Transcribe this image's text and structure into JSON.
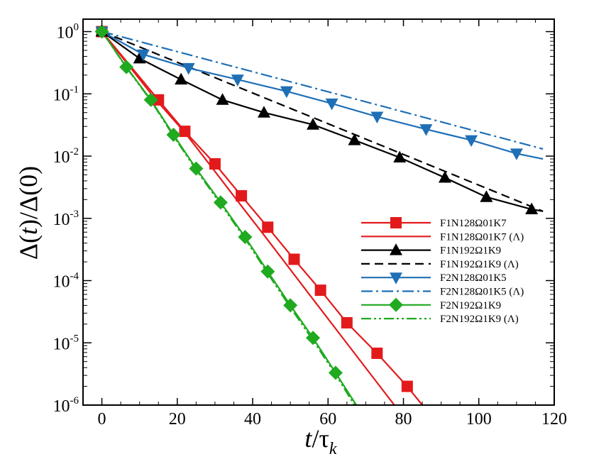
{
  "chart_data": {
    "type": "line",
    "xlabel": "t/τ_k",
    "ylabel": "Δ(t)/Δ(0)",
    "xlim": [
      -5,
      120
    ],
    "ylim_log10": [
      -6,
      0.2
    ],
    "yscale": "log",
    "x_ticks": [
      0,
      20,
      40,
      60,
      80,
      100,
      120
    ],
    "y_ticks": [
      {
        "exp": 0,
        "label": "10",
        "sup": "0"
      },
      {
        "exp": -1,
        "label": "10",
        "sup": "-1"
      },
      {
        "exp": -2,
        "label": "10",
        "sup": "-2"
      },
      {
        "exp": -3,
        "label": "10",
        "sup": "-3"
      },
      {
        "exp": -4,
        "label": "10",
        "sup": "-4"
      },
      {
        "exp": -5,
        "label": "10",
        "sup": "-5"
      },
      {
        "exp": -6,
        "label": "10",
        "sup": "-6"
      }
    ],
    "legend_position": "lower-right",
    "series": [
      {
        "name": "F1N128Ω01K7",
        "color": "#e31a1c",
        "dash": "solid",
        "marker": "square",
        "x": [
          0,
          15,
          22,
          30,
          37,
          44,
          51,
          58,
          65,
          73,
          81,
          85
        ],
        "y": [
          1,
          0.08,
          0.025,
          0.0075,
          0.0023,
          0.00072,
          0.00022,
          7e-05,
          2.1e-05,
          6.8e-06,
          2e-06,
          1e-06
        ],
        "marker_x": [
          0,
          15,
          22,
          30,
          37,
          44,
          51,
          58,
          65,
          73,
          81
        ]
      },
      {
        "name": "F1N128Ω01K7 (Λ)",
        "color": "#e31a1c",
        "dash": "solid",
        "marker": "none",
        "x": [
          0,
          14,
          22,
          29,
          36,
          43,
          50,
          57,
          64,
          71,
          78,
          83
        ],
        "y": [
          1,
          0.085,
          0.024,
          0.0068,
          0.0019,
          0.00054,
          0.00015,
          4.2e-05,
          1.18e-05,
          3.3e-06,
          9.3e-07,
          1e-06
        ]
      },
      {
        "name": "F1N192Ω1K9",
        "color": "#000000",
        "dash": "solid",
        "marker": "triangle-up",
        "x": [
          0,
          10,
          21,
          32,
          43,
          56,
          67,
          79,
          91,
          102,
          114,
          117
        ],
        "y": [
          1,
          0.37,
          0.17,
          0.08,
          0.05,
          0.032,
          0.018,
          0.0095,
          0.0045,
          0.0022,
          0.0014,
          0.0013
        ],
        "marker_x": [
          0,
          10,
          21,
          32,
          43,
          56,
          67,
          79,
          91,
          102,
          114
        ]
      },
      {
        "name": "F1N192Ω1K9 (Λ)",
        "color": "#000000",
        "dash": "dashed",
        "marker": "none",
        "x": [
          0,
          117
        ],
        "y": [
          1,
          0.0013
        ]
      },
      {
        "name": "F2N128Ω01K5",
        "color": "#1f6fb6",
        "dash": "solid",
        "marker": "triangle-down",
        "x": [
          0,
          11,
          23,
          36,
          49,
          61,
          73,
          86,
          98,
          110,
          117
        ],
        "y": [
          1,
          0.43,
          0.26,
          0.17,
          0.11,
          0.07,
          0.043,
          0.027,
          0.018,
          0.011,
          0.009
        ],
        "marker_x": [
          0,
          11,
          23,
          36,
          49,
          61,
          73,
          86,
          98,
          110
        ]
      },
      {
        "name": "F2N128Ω01K5 (Λ)",
        "color": "#1f6fb6",
        "dash": "dashdot",
        "marker": "none",
        "x": [
          0,
          117
        ],
        "y": [
          1,
          0.013
        ]
      },
      {
        "name": "F2N192Ω1K9",
        "color": "#1faa1f",
        "dash": "solid",
        "marker": "diamond",
        "x": [
          0,
          6.5,
          13,
          19,
          25,
          31.5,
          38,
          44,
          50,
          56,
          62,
          67.5
        ],
        "y": [
          1,
          0.27,
          0.08,
          0.022,
          0.0063,
          0.0018,
          0.0005,
          0.00014,
          4e-05,
          1.2e-05,
          3.3e-06,
          1e-06
        ],
        "marker_x": [
          0,
          6.5,
          13,
          19,
          25,
          31.5,
          38,
          44,
          50,
          56,
          62
        ]
      },
      {
        "name": "F2N192Ω1K9 (Λ)",
        "color": "#1faa1f",
        "dash": "dashdotdot",
        "marker": "none",
        "x": [
          0,
          6.5,
          13,
          19,
          25,
          31.5,
          38,
          44,
          50,
          56,
          62,
          67
        ],
        "y": [
          1,
          0.265,
          0.078,
          0.021,
          0.006,
          0.0017,
          0.00047,
          0.00013,
          3.7e-05,
          1.1e-05,
          3.1e-06,
          1e-06
        ]
      }
    ]
  }
}
